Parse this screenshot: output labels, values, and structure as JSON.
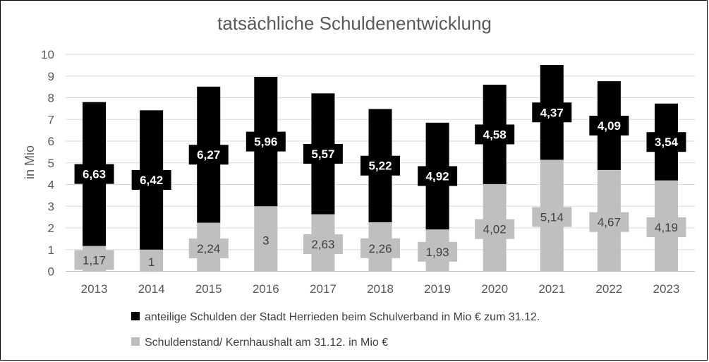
{
  "chart_data": {
    "type": "bar",
    "stacked": true,
    "title": "tatsächliche Schuldenentwicklung",
    "xlabel": "",
    "ylabel": "in Mio",
    "ylim": [
      0,
      10
    ],
    "yticks": [
      "0",
      "1",
      "2",
      "3",
      "4",
      "5",
      "6",
      "7",
      "8",
      "9",
      "10"
    ],
    "grid": true,
    "legend_position": "bottom",
    "categories": [
      "2013",
      "2014",
      "2015",
      "2016",
      "2017",
      "2018",
      "2019",
      "2020",
      "2021",
      "2022",
      "2023"
    ],
    "series": [
      {
        "name": "Schuldenstand/ Kernhaushalt am 31.12. in Mio €",
        "color": "#bfbfbf",
        "values": [
          1.17,
          1,
          2.24,
          3,
          2.63,
          2.26,
          1.93,
          4.02,
          5.14,
          4.67,
          4.19
        ],
        "labels": [
          "1,17",
          "1",
          "2,24",
          "3",
          "2,63",
          "2,26",
          "1,93",
          "4,02",
          "5,14",
          "4,67",
          "4,19"
        ]
      },
      {
        "name": "anteilige Schulden der Stadt Herrieden beim Schulverband in Mio € zum 31.12.",
        "color": "#000000",
        "values": [
          6.63,
          6.42,
          6.27,
          5.96,
          5.57,
          5.22,
          4.92,
          4.58,
          4.37,
          4.09,
          3.54
        ],
        "labels": [
          "6,63",
          "6,42",
          "6,27",
          "5,96",
          "5,57",
          "5,22",
          "4,92",
          "4,58",
          "4,37",
          "4,09",
          "3,54"
        ]
      }
    ],
    "legend_order": [
      1,
      0
    ]
  }
}
